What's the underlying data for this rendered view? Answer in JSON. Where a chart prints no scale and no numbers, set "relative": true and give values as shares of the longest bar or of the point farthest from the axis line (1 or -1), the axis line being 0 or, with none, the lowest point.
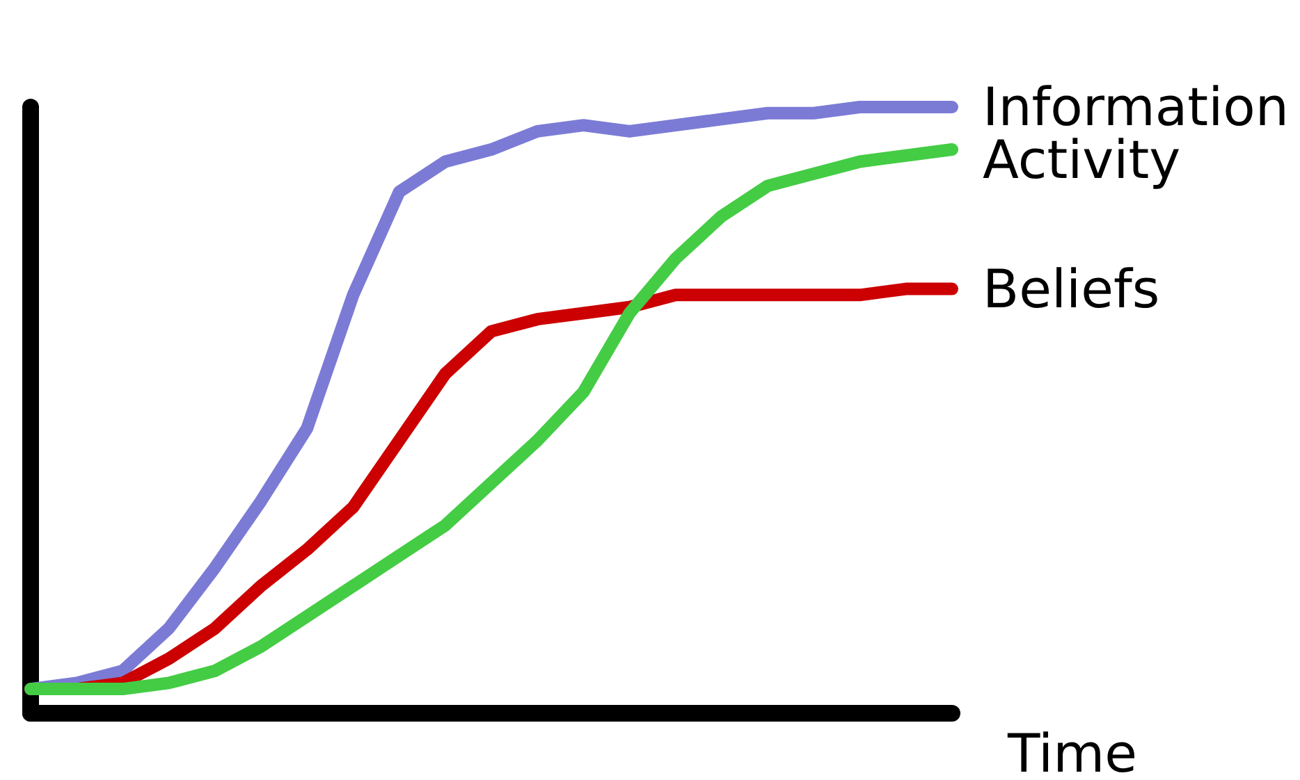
{
  "chart_data": {
    "type": "line",
    "relative": true,
    "xlabel": "Time",
    "categories": [
      null,
      null,
      null,
      null,
      null,
      null,
      null,
      null,
      null,
      null,
      null,
      null,
      null,
      null,
      null,
      null,
      null,
      null,
      null,
      null,
      null
    ],
    "series": [
      {
        "name": "Information",
        "color": "#7b7bd6",
        "values": [
          0.04,
          0.05,
          0.07,
          0.14,
          0.24,
          0.35,
          0.47,
          0.69,
          0.86,
          0.91,
          0.93,
          0.96,
          0.97,
          0.96,
          0.97,
          0.98,
          0.99,
          0.99,
          1.0,
          1.0,
          1.0
        ]
      },
      {
        "name": "Activity",
        "color": "#44cc44",
        "values": [
          0.04,
          0.04,
          0.04,
          0.05,
          0.07,
          0.11,
          0.16,
          0.21,
          0.26,
          0.31,
          0.38,
          0.45,
          0.53,
          0.66,
          0.75,
          0.82,
          0.87,
          0.89,
          0.91,
          0.92,
          0.93
        ]
      },
      {
        "name": "Beliefs",
        "color": "#cc0000",
        "values": [
          0.04,
          0.04,
          0.05,
          0.09,
          0.14,
          0.21,
          0.27,
          0.34,
          0.45,
          0.56,
          0.63,
          0.65,
          0.66,
          0.67,
          0.69,
          0.69,
          0.69,
          0.69,
          0.69,
          0.7,
          0.7
        ]
      }
    ],
    "legend": false,
    "grid": false,
    "marker": "none",
    "line_style": "solid"
  }
}
